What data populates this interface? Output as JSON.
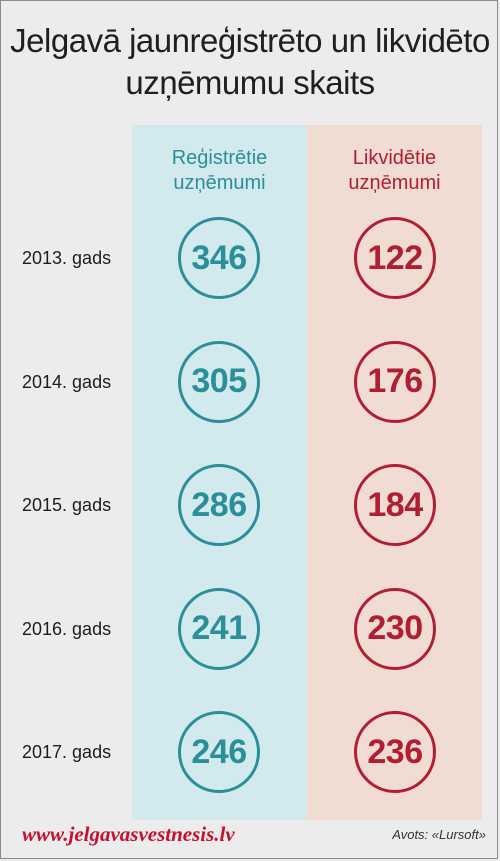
{
  "title_line1": "Jelgavā jaunreģistrēto un likvidēto",
  "title_line2": "uzņēmumu skaits",
  "chart_data": {
    "type": "table",
    "title": "Jelgavā jaunreģistrēto un likvidēto uzņēmumu skaits",
    "categories": [
      "2013. gads",
      "2014. gads",
      "2015. gads",
      "2016. gads",
      "2017. gads"
    ],
    "series": [
      {
        "name": "Reģistrētie uzņēmumi",
        "values": [
          346,
          305,
          286,
          241,
          246
        ],
        "color": "#2a8f99",
        "background": "#d2e9ee"
      },
      {
        "name": "Likvidētie uzņēmumi",
        "values": [
          122,
          176,
          184,
          230,
          236
        ],
        "color": "#b21e31",
        "background": "#f0dcd2"
      }
    ]
  },
  "columns": {
    "registered": {
      "line1": "Reģistrētie",
      "line2": "uzņēmumi"
    },
    "liquidated": {
      "line1": "Likvidētie",
      "line2": "uzņēmumi"
    }
  },
  "footer": {
    "url": "www.jelgavasvestnesis.lv",
    "source": "Avots: «Lursoft»"
  }
}
